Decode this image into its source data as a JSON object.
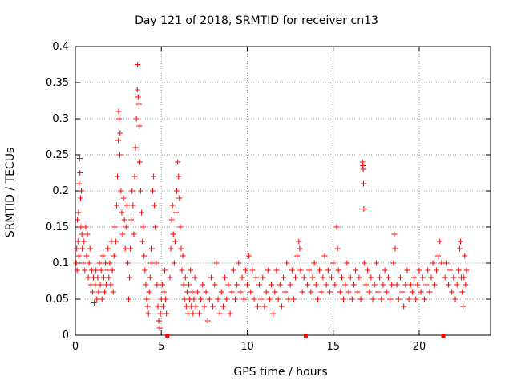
{
  "chart_data": {
    "type": "scatter",
    "title": "Day 121 of 2018, SRMTID for receiver cn13",
    "xlabel": "GPS time / hours",
    "ylabel": "SRMTID / TECUs",
    "xlim": [
      0,
      24.15
    ],
    "ylim": [
      0,
      0.4
    ],
    "xticks": [
      0,
      5,
      10,
      15,
      20
    ],
    "yticks": [
      0,
      0.05,
      0.1,
      0.15,
      0.2,
      0.25,
      0.3,
      0.35,
      0.4
    ],
    "ytick_labels": [
      "0",
      "0.05",
      "0.1",
      "0.15",
      "0.2",
      "0.25",
      "0.3",
      "0.35",
      "0.4"
    ],
    "grid": true,
    "marker": "+",
    "color": "#ff0000",
    "gap_markers_x": [
      5.35,
      13.4,
      21.4
    ],
    "series": [
      {
        "name": "SRMTID",
        "points": [
          [
            0.05,
            0.1
          ],
          [
            0.08,
            0.12
          ],
          [
            0.1,
            0.09
          ],
          [
            0.12,
            0.16
          ],
          [
            0.15,
            0.13
          ],
          [
            0.18,
            0.17
          ],
          [
            0.2,
            0.11
          ],
          [
            0.22,
            0.21
          ],
          [
            0.25,
            0.245
          ],
          [
            0.27,
            0.225
          ],
          [
            0.3,
            0.19
          ],
          [
            0.32,
            0.15
          ],
          [
            0.35,
            0.2
          ],
          [
            0.38,
            0.14
          ],
          [
            0.4,
            0.12
          ],
          [
            0.45,
            0.1
          ],
          [
            0.5,
            0.13
          ],
          [
            0.55,
            0.09
          ],
          [
            0.6,
            0.15
          ],
          [
            0.65,
            0.11
          ],
          [
            0.7,
            0.14
          ],
          [
            0.75,
            0.08
          ],
          [
            0.8,
            0.1
          ],
          [
            0.85,
            0.12
          ],
          [
            0.9,
            0.07
          ],
          [
            0.95,
            0.09
          ],
          [
            1.0,
            0.06
          ],
          [
            1.05,
            0.08
          ],
          [
            1.1,
            0.045
          ],
          [
            1.15,
            0.07
          ],
          [
            1.2,
            0.09
          ],
          [
            1.25,
            0.05
          ],
          [
            1.3,
            0.08
          ],
          [
            1.35,
            0.06
          ],
          [
            1.4,
            0.1
          ],
          [
            1.45,
            0.07
          ],
          [
            1.5,
            0.09
          ],
          [
            1.55,
            0.05
          ],
          [
            1.6,
            0.11
          ],
          [
            1.65,
            0.08
          ],
          [
            1.7,
            0.06
          ],
          [
            1.75,
            0.1
          ],
          [
            1.8,
            0.07
          ],
          [
            1.85,
            0.09
          ],
          [
            1.9,
            0.12
          ],
          [
            1.95,
            0.08
          ],
          [
            2.0,
            0.1
          ],
          [
            2.05,
            0.07
          ],
          [
            2.1,
            0.13
          ],
          [
            2.15,
            0.09
          ],
          [
            2.2,
            0.06
          ],
          [
            2.25,
            0.11
          ],
          [
            2.3,
            0.15
          ],
          [
            2.35,
            0.13
          ],
          [
            2.4,
            0.18
          ],
          [
            2.45,
            0.22
          ],
          [
            2.5,
            0.27
          ],
          [
            2.52,
            0.31
          ],
          [
            2.55,
            0.3
          ],
          [
            2.58,
            0.25
          ],
          [
            2.6,
            0.28
          ],
          [
            2.65,
            0.2
          ],
          [
            2.7,
            0.17
          ],
          [
            2.75,
            0.14
          ],
          [
            2.8,
            0.19
          ],
          [
            2.85,
            0.16
          ],
          [
            2.9,
            0.12
          ],
          [
            2.95,
            0.15
          ],
          [
            3.0,
            0.18
          ],
          [
            3.05,
            0.1
          ],
          [
            3.1,
            0.05
          ],
          [
            3.15,
            0.08
          ],
          [
            3.2,
            0.12
          ],
          [
            3.25,
            0.16
          ],
          [
            3.3,
            0.2
          ],
          [
            3.35,
            0.18
          ],
          [
            3.4,
            0.14
          ],
          [
            3.45,
            0.22
          ],
          [
            3.5,
            0.26
          ],
          [
            3.55,
            0.3
          ],
          [
            3.6,
            0.34
          ],
          [
            3.62,
            0.375
          ],
          [
            3.65,
            0.33
          ],
          [
            3.7,
            0.32
          ],
          [
            3.72,
            0.29
          ],
          [
            3.75,
            0.24
          ],
          [
            3.8,
            0.2
          ],
          [
            3.85,
            0.17
          ],
          [
            3.9,
            0.13
          ],
          [
            3.95,
            0.15
          ],
          [
            4.0,
            0.11
          ],
          [
            4.05,
            0.09
          ],
          [
            4.1,
            0.07
          ],
          [
            4.15,
            0.05
          ],
          [
            4.2,
            0.04
          ],
          [
            4.25,
            0.03
          ],
          [
            4.3,
            0.06
          ],
          [
            4.35,
            0.08
          ],
          [
            4.4,
            0.1
          ],
          [
            4.45,
            0.12
          ],
          [
            4.5,
            0.2
          ],
          [
            4.55,
            0.22
          ],
          [
            4.6,
            0.18
          ],
          [
            4.65,
            0.15
          ],
          [
            4.7,
            0.1
          ],
          [
            4.75,
            0.07
          ],
          [
            4.8,
            0.04
          ],
          [
            4.85,
            0.02
          ],
          [
            4.9,
            0.01
          ],
          [
            4.95,
            0.03
          ],
          [
            5.0,
            0.05
          ],
          [
            5.05,
            0.07
          ],
          [
            5.1,
            0.04
          ],
          [
            5.15,
            0.06
          ],
          [
            5.2,
            0.09
          ],
          [
            5.25,
            0.05
          ],
          [
            5.3,
            0.03
          ],
          [
            5.5,
            0.08
          ],
          [
            5.55,
            0.12
          ],
          [
            5.6,
            0.16
          ],
          [
            5.65,
            0.18
          ],
          [
            5.7,
            0.14
          ],
          [
            5.75,
            0.1
          ],
          [
            5.8,
            0.13
          ],
          [
            5.85,
            0.17
          ],
          [
            5.9,
            0.2
          ],
          [
            5.95,
            0.24
          ],
          [
            6.0,
            0.22
          ],
          [
            6.05,
            0.19
          ],
          [
            6.1,
            0.15
          ],
          [
            6.15,
            0.12
          ],
          [
            6.2,
            0.09
          ],
          [
            6.25,
            0.11
          ],
          [
            6.3,
            0.07
          ],
          [
            6.35,
            0.05
          ],
          [
            6.4,
            0.08
          ],
          [
            6.45,
            0.04
          ],
          [
            6.5,
            0.06
          ],
          [
            6.55,
            0.03
          ],
          [
            6.6,
            0.07
          ],
          [
            6.65,
            0.05
          ],
          [
            6.7,
            0.09
          ],
          [
            6.75,
            0.04
          ],
          [
            6.8,
            0.06
          ],
          [
            6.85,
            0.03
          ],
          [
            6.9,
            0.05
          ],
          [
            6.95,
            0.08
          ],
          [
            7.0,
            0.04
          ],
          [
            7.1,
            0.06
          ],
          [
            7.2,
            0.03
          ],
          [
            7.3,
            0.05
          ],
          [
            7.4,
            0.07
          ],
          [
            7.5,
            0.04
          ],
          [
            7.6,
            0.06
          ],
          [
            7.7,
            0.02
          ],
          [
            7.8,
            0.05
          ],
          [
            7.9,
            0.08
          ],
          [
            8.0,
            0.04
          ],
          [
            8.1,
            0.07
          ],
          [
            8.2,
            0.1
          ],
          [
            8.3,
            0.05
          ],
          [
            8.4,
            0.03
          ],
          [
            8.5,
            0.06
          ],
          [
            8.6,
            0.04
          ],
          [
            8.7,
            0.08
          ],
          [
            8.8,
            0.05
          ],
          [
            8.9,
            0.07
          ],
          [
            9.0,
            0.03
          ],
          [
            9.1,
            0.06
          ],
          [
            9.2,
            0.09
          ],
          [
            9.3,
            0.05
          ],
          [
            9.4,
            0.07
          ],
          [
            9.5,
            0.1
          ],
          [
            9.6,
            0.06
          ],
          [
            9.7,
            0.08
          ],
          [
            9.8,
            0.05
          ],
          [
            9.9,
            0.09
          ],
          [
            10.0,
            0.07
          ],
          [
            10.1,
            0.11
          ],
          [
            10.2,
            0.06
          ],
          [
            10.3,
            0.09
          ],
          [
            10.4,
            0.05
          ],
          [
            10.5,
            0.08
          ],
          [
            10.6,
            0.04
          ],
          [
            10.7,
            0.07
          ],
          [
            10.8,
            0.05
          ],
          [
            10.9,
            0.08
          ],
          [
            11.0,
            0.04
          ],
          [
            11.1,
            0.06
          ],
          [
            11.2,
            0.09
          ],
          [
            11.3,
            0.05
          ],
          [
            11.4,
            0.07
          ],
          [
            11.5,
            0.03
          ],
          [
            11.6,
            0.06
          ],
          [
            11.7,
            0.09
          ],
          [
            11.8,
            0.05
          ],
          [
            11.9,
            0.07
          ],
          [
            12.0,
            0.04
          ],
          [
            12.1,
            0.08
          ],
          [
            12.2,
            0.06
          ],
          [
            12.3,
            0.1
          ],
          [
            12.4,
            0.05
          ],
          [
            12.5,
            0.07
          ],
          [
            12.6,
            0.09
          ],
          [
            12.7,
            0.05
          ],
          [
            12.8,
            0.08
          ],
          [
            12.9,
            0.11
          ],
          [
            13.0,
            0.13
          ],
          [
            13.05,
            0.12
          ],
          [
            13.1,
            0.09
          ],
          [
            13.2,
            0.06
          ],
          [
            13.3,
            0.08
          ],
          [
            13.5,
            0.07
          ],
          [
            13.6,
            0.09
          ],
          [
            13.7,
            0.06
          ],
          [
            13.8,
            0.08
          ],
          [
            13.9,
            0.1
          ],
          [
            14.0,
            0.07
          ],
          [
            14.1,
            0.05
          ],
          [
            14.2,
            0.09
          ],
          [
            14.3,
            0.06
          ],
          [
            14.4,
            0.08
          ],
          [
            14.5,
            0.11
          ],
          [
            14.6,
            0.07
          ],
          [
            14.7,
            0.09
          ],
          [
            14.8,
            0.06
          ],
          [
            14.9,
            0.08
          ],
          [
            15.0,
            0.1
          ],
          [
            15.1,
            0.07
          ],
          [
            15.2,
            0.15
          ],
          [
            15.25,
            0.12
          ],
          [
            15.3,
            0.09
          ],
          [
            15.4,
            0.06
          ],
          [
            15.5,
            0.08
          ],
          [
            15.6,
            0.05
          ],
          [
            15.7,
            0.07
          ],
          [
            15.8,
            0.1
          ],
          [
            15.9,
            0.06
          ],
          [
            16.0,
            0.08
          ],
          [
            16.1,
            0.05
          ],
          [
            16.2,
            0.07
          ],
          [
            16.3,
            0.09
          ],
          [
            16.4,
            0.06
          ],
          [
            16.5,
            0.08
          ],
          [
            16.6,
            0.05
          ],
          [
            16.7,
            0.24
          ],
          [
            16.72,
            0.235
          ],
          [
            16.74,
            0.23
          ],
          [
            16.76,
            0.21
          ],
          [
            16.78,
            0.175
          ],
          [
            16.8,
            0.1
          ],
          [
            16.9,
            0.07
          ],
          [
            17.0,
            0.09
          ],
          [
            17.1,
            0.06
          ],
          [
            17.2,
            0.08
          ],
          [
            17.3,
            0.05
          ],
          [
            17.4,
            0.07
          ],
          [
            17.5,
            0.1
          ],
          [
            17.6,
            0.06
          ],
          [
            17.7,
            0.08
          ],
          [
            17.8,
            0.05
          ],
          [
            17.9,
            0.07
          ],
          [
            18.0,
            0.09
          ],
          [
            18.1,
            0.06
          ],
          [
            18.2,
            0.08
          ],
          [
            18.3,
            0.05
          ],
          [
            18.4,
            0.07
          ],
          [
            18.5,
            0.1
          ],
          [
            18.55,
            0.14
          ],
          [
            18.6,
            0.12
          ],
          [
            18.7,
            0.07
          ],
          [
            18.8,
            0.05
          ],
          [
            18.9,
            0.08
          ],
          [
            19.0,
            0.06
          ],
          [
            19.1,
            0.04
          ],
          [
            19.2,
            0.07
          ],
          [
            19.3,
            0.09
          ],
          [
            19.4,
            0.05
          ],
          [
            19.5,
            0.07
          ],
          [
            19.6,
            0.06
          ],
          [
            19.7,
            0.08
          ],
          [
            19.8,
            0.05
          ],
          [
            19.9,
            0.07
          ],
          [
            20.0,
            0.09
          ],
          [
            20.1,
            0.06
          ],
          [
            20.2,
            0.08
          ],
          [
            20.3,
            0.05
          ],
          [
            20.4,
            0.07
          ],
          [
            20.5,
            0.09
          ],
          [
            20.6,
            0.06
          ],
          [
            20.7,
            0.08
          ],
          [
            20.8,
            0.1
          ],
          [
            20.9,
            0.07
          ],
          [
            21.0,
            0.09
          ],
          [
            21.1,
            0.11
          ],
          [
            21.2,
            0.13
          ],
          [
            21.3,
            0.1
          ],
          [
            21.5,
            0.08
          ],
          [
            21.6,
            0.1
          ],
          [
            21.7,
            0.07
          ],
          [
            21.8,
            0.09
          ],
          [
            21.9,
            0.06
          ],
          [
            22.0,
            0.08
          ],
          [
            22.1,
            0.05
          ],
          [
            22.2,
            0.07
          ],
          [
            22.3,
            0.09
          ],
          [
            22.35,
            0.12
          ],
          [
            22.4,
            0.13
          ],
          [
            22.45,
            0.08
          ],
          [
            22.5,
            0.06
          ],
          [
            22.55,
            0.04
          ],
          [
            22.6,
            0.08
          ],
          [
            22.65,
            0.11
          ],
          [
            22.7,
            0.07
          ],
          [
            22.75,
            0.09
          ]
        ]
      }
    ]
  }
}
